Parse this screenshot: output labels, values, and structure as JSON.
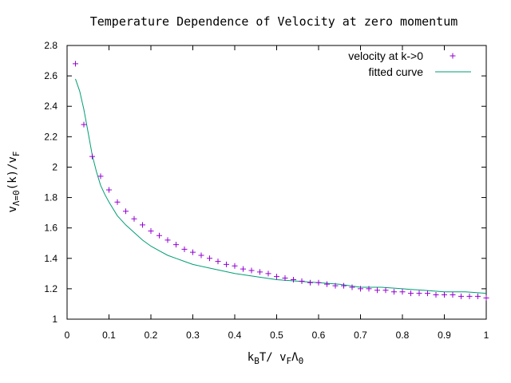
{
  "chart_data": {
    "type": "scatter",
    "title": "Temperature Dependence of Velocity at zero momentum",
    "xlabel": {
      "k": "k",
      "B": "B",
      "mid": "T/ v",
      "F": "F",
      "Lambda": "Λ",
      "zero": "0"
    },
    "ylabel": {
      "v": "v",
      "sub": "Λ=0",
      "mid": "(k)/v",
      "F": "F"
    },
    "xlim": [
      0,
      1
    ],
    "ylim": [
      1,
      2.8
    ],
    "xticks": [
      0,
      0.1,
      0.2,
      0.3,
      0.4,
      0.5,
      0.6,
      0.7,
      0.8,
      0.9,
      1
    ],
    "xtick_labels": [
      "0",
      "0.1",
      "0.2",
      "0.3",
      "0.4",
      "0.5",
      "0.6",
      "0.7",
      "0.8",
      "0.9",
      "1"
    ],
    "yticks": [
      1,
      1.2,
      1.4,
      1.6,
      1.8,
      2,
      2.2,
      2.4,
      2.6,
      2.8
    ],
    "ytick_labels": [
      "1",
      "1.2",
      "1.4",
      "1.6",
      "1.8",
      "2",
      "2.2",
      "2.4",
      "2.6",
      "2.8"
    ],
    "grid": false,
    "legend_position": "top-right",
    "series": [
      {
        "name": "velocity at k->0",
        "kind": "points",
        "marker": "+",
        "color": "#9400d3",
        "x": [
          0.02,
          0.04,
          0.06,
          0.08,
          0.1,
          0.12,
          0.14,
          0.16,
          0.18,
          0.2,
          0.22,
          0.24,
          0.26,
          0.28,
          0.3,
          0.32,
          0.34,
          0.36,
          0.38,
          0.4,
          0.42,
          0.44,
          0.46,
          0.48,
          0.5,
          0.52,
          0.54,
          0.56,
          0.58,
          0.6,
          0.62,
          0.64,
          0.66,
          0.68,
          0.7,
          0.72,
          0.74,
          0.76,
          0.78,
          0.8,
          0.82,
          0.84,
          0.86,
          0.88,
          0.9,
          0.92,
          0.94,
          0.96,
          0.98,
          1.0
        ],
        "y": [
          2.68,
          2.28,
          2.07,
          1.94,
          1.85,
          1.77,
          1.71,
          1.66,
          1.62,
          1.58,
          1.55,
          1.52,
          1.49,
          1.46,
          1.44,
          1.42,
          1.4,
          1.38,
          1.36,
          1.35,
          1.33,
          1.32,
          1.31,
          1.3,
          1.28,
          1.27,
          1.26,
          1.25,
          1.24,
          1.24,
          1.23,
          1.22,
          1.22,
          1.21,
          1.2,
          1.2,
          1.19,
          1.19,
          1.18,
          1.18,
          1.17,
          1.17,
          1.17,
          1.16,
          1.16,
          1.16,
          1.15,
          1.15,
          1.15,
          1.14
        ]
      },
      {
        "name": "fitted curve",
        "kind": "line",
        "color": "#009e73",
        "x": [
          0.02,
          0.03,
          0.04,
          0.05,
          0.06,
          0.07,
          0.08,
          0.09,
          0.1,
          0.12,
          0.14,
          0.16,
          0.18,
          0.2,
          0.22,
          0.24,
          0.26,
          0.28,
          0.3,
          0.35,
          0.4,
          0.45,
          0.5,
          0.55,
          0.6,
          0.65,
          0.7,
          0.75,
          0.8,
          0.85,
          0.9,
          0.95,
          1.0
        ],
        "y": [
          2.58,
          2.5,
          2.38,
          2.23,
          2.08,
          1.97,
          1.88,
          1.82,
          1.77,
          1.68,
          1.62,
          1.57,
          1.52,
          1.48,
          1.45,
          1.42,
          1.4,
          1.38,
          1.36,
          1.33,
          1.3,
          1.28,
          1.26,
          1.25,
          1.24,
          1.23,
          1.21,
          1.21,
          1.2,
          1.19,
          1.18,
          1.18,
          1.17
        ]
      }
    ]
  }
}
